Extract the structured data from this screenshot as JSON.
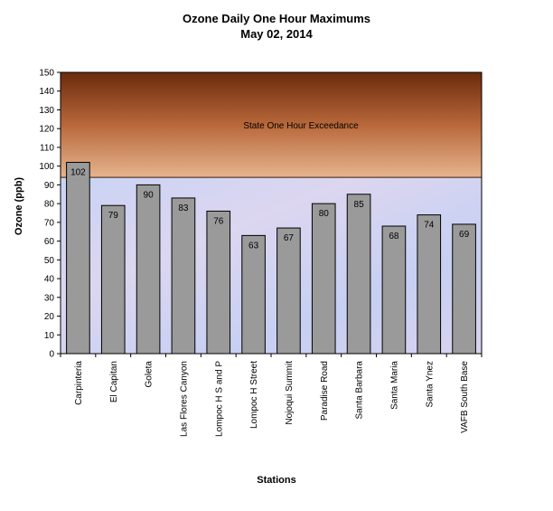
{
  "chart_data": {
    "type": "bar",
    "title": "Ozone Daily One Hour Maximums",
    "subtitle": "May 02, 2014",
    "xlabel": "Stations",
    "ylabel": "Ozone (ppb)",
    "ylim": [
      0,
      150
    ],
    "yticks": [
      0,
      10,
      20,
      30,
      40,
      50,
      60,
      70,
      80,
      90,
      100,
      110,
      120,
      130,
      140,
      150
    ],
    "categories": [
      "Carpinteria",
      "El Capitan",
      "Goleta",
      "Las Flores Canyon",
      "Lompoc H S and P",
      "Lompoc H Street",
      "Nojoqui Summit",
      "Paradise Road",
      "Santa Barbara",
      "Santa Maria",
      "Santa Ynez",
      "VAFB South Base"
    ],
    "values": [
      102,
      79,
      90,
      83,
      76,
      63,
      67,
      80,
      85,
      68,
      74,
      69
    ],
    "data_labels": [
      "102",
      "79",
      "90",
      "83",
      "76",
      "63",
      "67",
      "80",
      "85",
      "68",
      "74",
      "69"
    ],
    "threshold": {
      "value": 94,
      "label": "State One Hour Exceedance"
    },
    "bar_color": "#9a9a9a",
    "grid": false,
    "legend": "none"
  }
}
